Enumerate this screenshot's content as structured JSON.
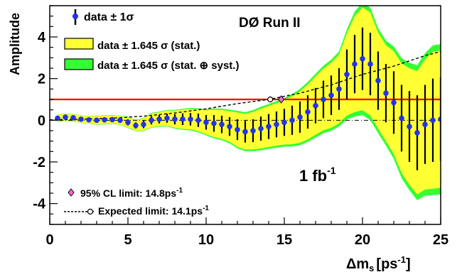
{
  "chart_data": {
    "type": "scatter",
    "xlabel_main": "Δm",
    "xlabel_sub": "s",
    "xlabel_unit": "[ps",
    "xlabel_sup": "-1",
    "xlabel_close": "]",
    "ylabel": "Amplitude",
    "xlim": [
      0,
      25
    ],
    "ylim": [
      -5,
      5.5
    ],
    "x_ticks": [
      0,
      5,
      10,
      15,
      20,
      25
    ],
    "y_ticks": [
      -4,
      -2,
      0,
      2,
      4
    ],
    "x_tick_labels": [
      "0",
      "5",
      "10",
      "15",
      "20",
      "25"
    ],
    "y_tick_labels": [
      "-4",
      "-2",
      "0",
      "2",
      "4"
    ],
    "experiment_label": "DØ Run II",
    "luminosity_label": "1 fb",
    "luminosity_sup": "-1",
    "reference_line": 1,
    "legend": {
      "data": "data ± 1σ",
      "band_stat": "data ± 1.645 σ (stat.)",
      "band_syst": "data ± 1.645 σ (stat. ⊕ syst.)"
    },
    "limits": {
      "cl_label": "95% CL limit: 14.8ps",
      "cl_sup": "-1",
      "expected_label": "Expected limit: 14.1ps",
      "expected_sup": "-1"
    },
    "colors": {
      "stat_band": "#ffff33",
      "syst_band": "#33ff33",
      "points": "#2233ee",
      "reference": "#ff0000",
      "limit_marker": "#ff66cc"
    },
    "series": [
      {
        "x": [
          0.5,
          1.0,
          1.5,
          2.0,
          2.5,
          3.0,
          3.5,
          4.0,
          4.5,
          5.0,
          5.5,
          6.0,
          6.5,
          7.0,
          7.5,
          8.0,
          8.5,
          9.0,
          9.5,
          10.0,
          10.5,
          11.0,
          11.5,
          12.0,
          12.5,
          13.0,
          13.5,
          14.0,
          14.5,
          15.0,
          15.5,
          16.0,
          16.5,
          17.0,
          17.5,
          18.0,
          18.5,
          19.0,
          19.5,
          20.0,
          20.5,
          21.0,
          21.5,
          22.0,
          22.5,
          23.0,
          23.5,
          24.0,
          24.5,
          25.0
        ],
        "y": [
          0.1,
          0.15,
          0.12,
          0.05,
          0.02,
          0.0,
          0.02,
          0.03,
          0.0,
          -0.1,
          -0.25,
          -0.2,
          0.0,
          0.05,
          0.1,
          0.05,
          0.05,
          0.05,
          0.0,
          -0.1,
          -0.15,
          -0.2,
          -0.3,
          -0.45,
          -0.55,
          -0.5,
          -0.4,
          -0.3,
          -0.2,
          -0.1,
          0.0,
          0.15,
          0.4,
          0.7,
          1.0,
          1.2,
          1.5,
          2.2,
          2.7,
          2.95,
          2.7,
          1.9,
          1.3,
          0.85,
          0.1,
          -0.3,
          -0.6,
          -0.2,
          0.0,
          0.05
        ],
        "err": [
          0.1,
          0.1,
          0.1,
          0.1,
          0.1,
          0.12,
          0.12,
          0.12,
          0.12,
          0.15,
          0.15,
          0.18,
          0.2,
          0.2,
          0.22,
          0.25,
          0.28,
          0.3,
          0.32,
          0.35,
          0.4,
          0.42,
          0.45,
          0.5,
          0.52,
          0.55,
          0.58,
          0.6,
          0.62,
          0.65,
          0.7,
          0.75,
          0.8,
          0.85,
          0.9,
          0.95,
          1.0,
          1.2,
          1.4,
          1.5,
          1.5,
          1.4,
          1.4,
          1.5,
          1.6,
          1.7,
          1.8,
          1.9,
          2.0,
          2.0
        ]
      }
    ],
    "expected_curve": {
      "x": [
        0,
        2,
        4,
        6,
        8,
        10,
        12,
        14,
        16,
        18,
        20,
        22,
        24,
        25
      ],
      "y": [
        0.02,
        0.05,
        0.1,
        0.2,
        0.35,
        0.55,
        0.8,
        1.0,
        1.3,
        1.7,
        2.2,
        2.6,
        3.1,
        3.3
      ]
    }
  }
}
